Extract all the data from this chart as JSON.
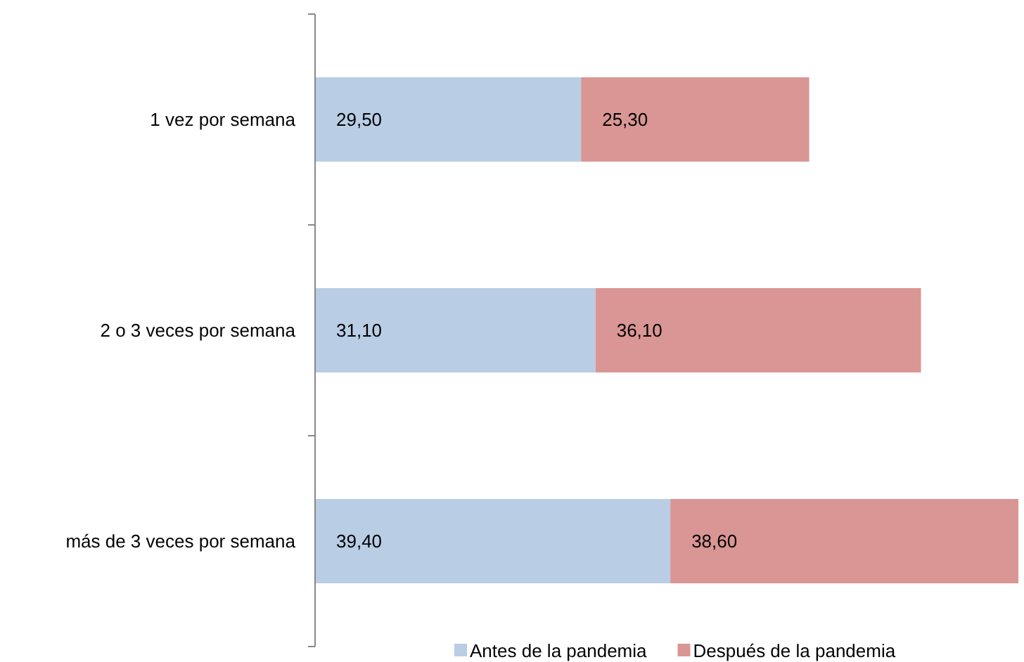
{
  "chart_data": {
    "type": "bar",
    "orientation": "horizontal",
    "stacked": true,
    "categories": [
      "1 vez por semana",
      "2 o 3 veces por semana",
      "más de 3 veces por semana"
    ],
    "series": [
      {
        "name": "Antes de la pandemia",
        "color": "#b9cde5",
        "values": [
          29.5,
          31.1,
          39.4
        ],
        "value_labels": [
          "29,50",
          "31,10",
          "39,40"
        ]
      },
      {
        "name": "Después de la pandemia",
        "color": "#d99694",
        "values": [
          25.3,
          36.1,
          38.6
        ],
        "value_labels": [
          "25,30",
          "36,10",
          "38,60"
        ]
      }
    ],
    "legend": "bottom"
  }
}
